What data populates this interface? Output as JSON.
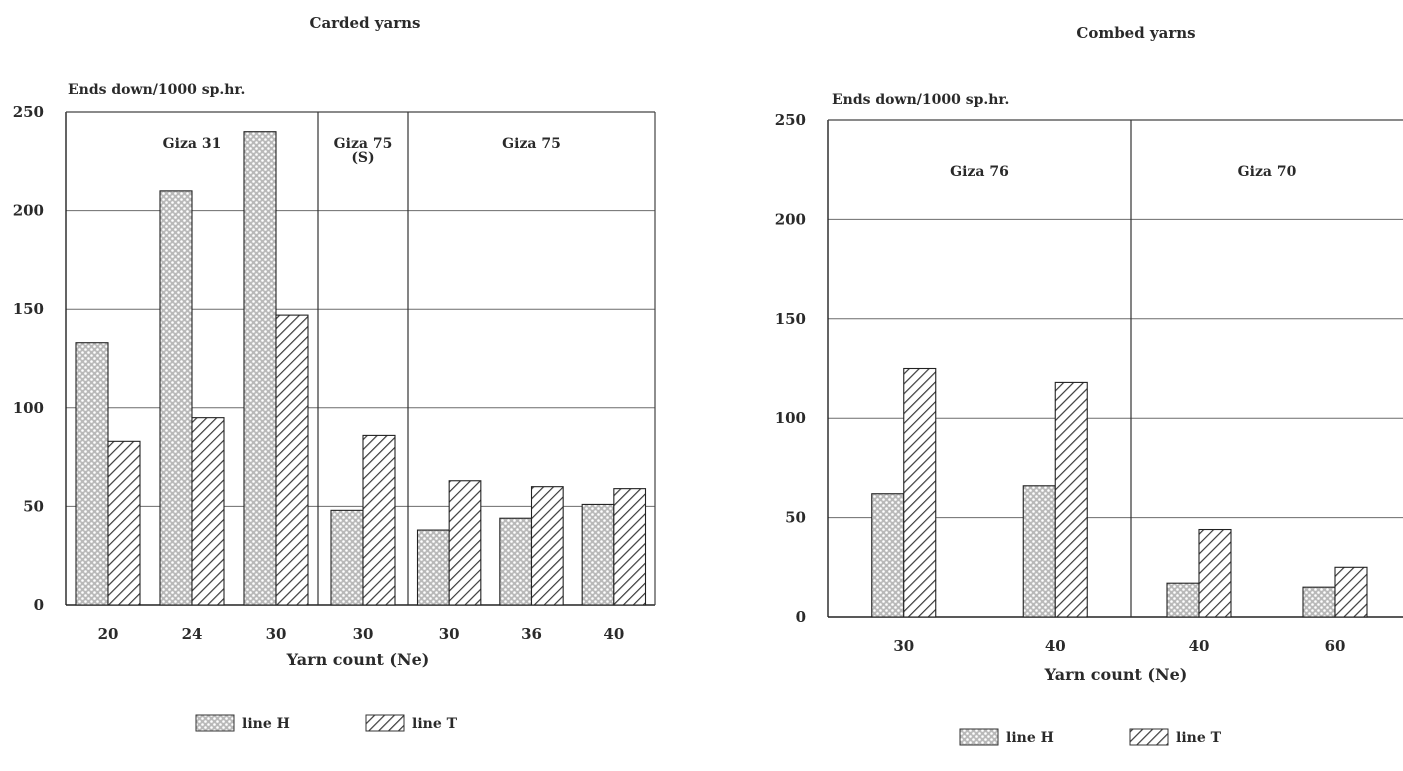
{
  "chart_data": [
    {
      "type": "bar",
      "title": "Carded yarns",
      "ylabel": "Ends down/1000 sp.hr.",
      "xlabel": "Yarn count (Ne)",
      "ylim": [
        0,
        250
      ],
      "yticks": [
        "0",
        "50",
        "100",
        "150",
        "200",
        "250"
      ],
      "grid": true,
      "categories": [
        "20",
        "24",
        "30",
        "30",
        "30",
        "36",
        "40"
      ],
      "groups": [
        {
          "label": "Giza 31",
          "categories": [
            0,
            1,
            2
          ]
        },
        {
          "label": "Giza 75\n(S)",
          "categories": [
            3
          ]
        },
        {
          "label": "Giza 75",
          "categories": [
            4,
            5,
            6
          ]
        }
      ],
      "series": [
        {
          "name": "line H",
          "values": [
            133,
            210,
            240,
            48,
            38,
            44,
            51
          ]
        },
        {
          "name": "line T",
          "values": [
            83,
            95,
            147,
            86,
            63,
            60,
            59
          ]
        }
      ],
      "legend": {
        "position": "bottom",
        "items": [
          "line H",
          "line T"
        ]
      }
    },
    {
      "type": "bar",
      "title": "Combed yarns",
      "ylabel": "Ends down/1000 sp.hr.",
      "xlabel": "Yarn count (Ne)",
      "ylim": [
        0,
        250
      ],
      "yticks": [
        "0",
        "50",
        "100",
        "150",
        "200",
        "250"
      ],
      "grid": true,
      "categories": [
        "30",
        "40",
        "40",
        "60"
      ],
      "groups": [
        {
          "label": "Giza 76",
          "categories": [
            0,
            1
          ]
        },
        {
          "label": "Giza 70",
          "categories": [
            2,
            3
          ]
        }
      ],
      "series": [
        {
          "name": "line H",
          "values": [
            62,
            66,
            17,
            15
          ]
        },
        {
          "name": "line T",
          "values": [
            125,
            118,
            44,
            25
          ]
        }
      ],
      "legend": {
        "position": "bottom",
        "items": [
          "line H",
          "line T"
        ]
      }
    }
  ]
}
